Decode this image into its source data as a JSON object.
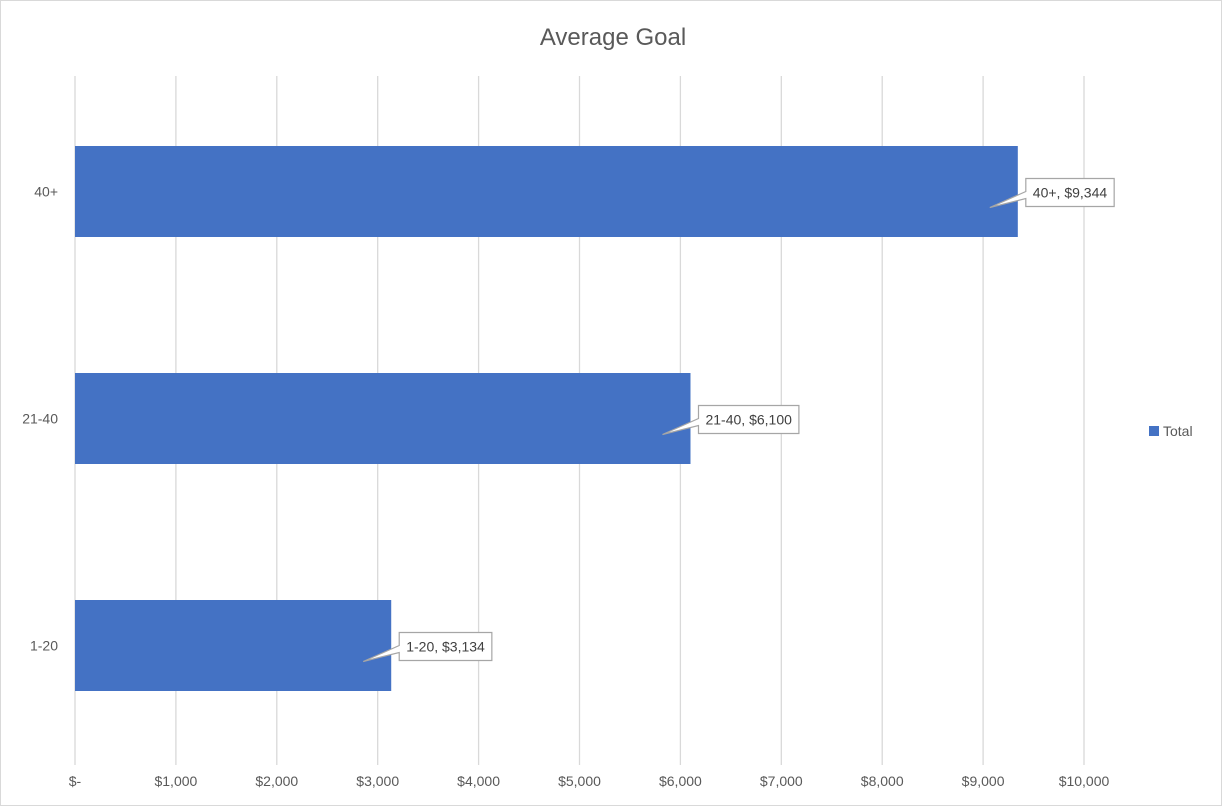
{
  "chart_data": {
    "type": "bar",
    "orientation": "horizontal",
    "title": "Average Goal",
    "categories": [
      "1-20",
      "21-40",
      "40+"
    ],
    "series": [
      {
        "name": "Total",
        "values": [
          3134,
          6100,
          9344
        ]
      }
    ],
    "data_labels": [
      "1-20,  $3,134",
      "21-40,  $6,100",
      "40+,  $9,344"
    ],
    "xlim": [
      0,
      10000
    ],
    "x_ticks": [
      0,
      1000,
      2000,
      3000,
      4000,
      5000,
      6000,
      7000,
      8000,
      9000,
      10000
    ],
    "x_tick_labels": [
      "$-",
      "$1,000",
      "$2,000",
      "$3,000",
      "$4,000",
      "$5,000",
      "$6,000",
      "$7,000",
      "$8,000",
      "$9,000",
      "$10,000"
    ],
    "gridlines": "vertical",
    "legend_position": "right",
    "colors": {
      "bar": "#4472c4",
      "grid": "#d9d9d9",
      "label_border": "#a6a6a6"
    }
  }
}
